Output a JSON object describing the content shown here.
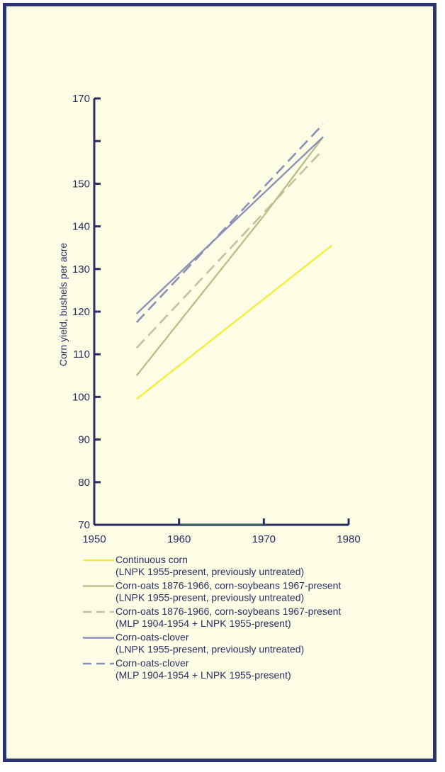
{
  "chart_data": {
    "type": "line",
    "title": "",
    "xlabel": "",
    "ylabel": "Corn yield, bushels per acre",
    "xlim": [
      1950,
      1980
    ],
    "ylim": [
      70,
      170
    ],
    "x_ticks": [
      1950,
      1960,
      1970,
      1980
    ],
    "y_ticks": [
      70,
      80,
      90,
      100,
      110,
      120,
      130,
      140,
      150,
      170
    ],
    "y_minor_ticks": [
      160
    ],
    "grid": false,
    "legend_position": "bottom-left",
    "series": [
      {
        "name": "Continuous corn",
        "detail": "(LNPK 1955-present, previously untreated)",
        "color": "#f2ee3a",
        "dash": "solid",
        "points": [
          [
            1955,
            99.5
          ],
          [
            1978,
            135.5
          ]
        ]
      },
      {
        "name": "Corn-oats 1876-1966, corn-soybeans 1967-present",
        "detail": "(LNPK 1955-present, previously untreated)",
        "color": "#b9c08a",
        "dash": "solid",
        "points": [
          [
            1955,
            105
          ],
          [
            1970,
            142.5
          ],
          [
            1977,
            161
          ]
        ]
      },
      {
        "name": "Corn-oats 1876-1966, corn-soybeans 1967-present",
        "detail": "(MLP 1904-1954 + LNPK 1955-present)",
        "color": "#bfc49a",
        "dash": "dashed",
        "points": [
          [
            1955,
            111.5
          ],
          [
            1977,
            158
          ]
        ]
      },
      {
        "name": "Corn-oats-clover",
        "detail": "(LNPK 1955-present, previously untreated)",
        "color": "#8c92b8",
        "dash": "solid",
        "points": [
          [
            1955,
            119.5
          ],
          [
            1977,
            161
          ]
        ]
      },
      {
        "name": "Corn-oats-clover",
        "detail": "(MLP 1904-1954 + LNPK 1955-present)",
        "color": "#8a90b6",
        "dash": "dashed",
        "points": [
          [
            1955,
            117.5
          ],
          [
            1977,
            164
          ]
        ]
      }
    ]
  },
  "colors": {
    "frame_border": "#2b3470",
    "background": "#fdfde6",
    "axis": "#2a2f63",
    "axis_accent": "#3f7a4f"
  }
}
